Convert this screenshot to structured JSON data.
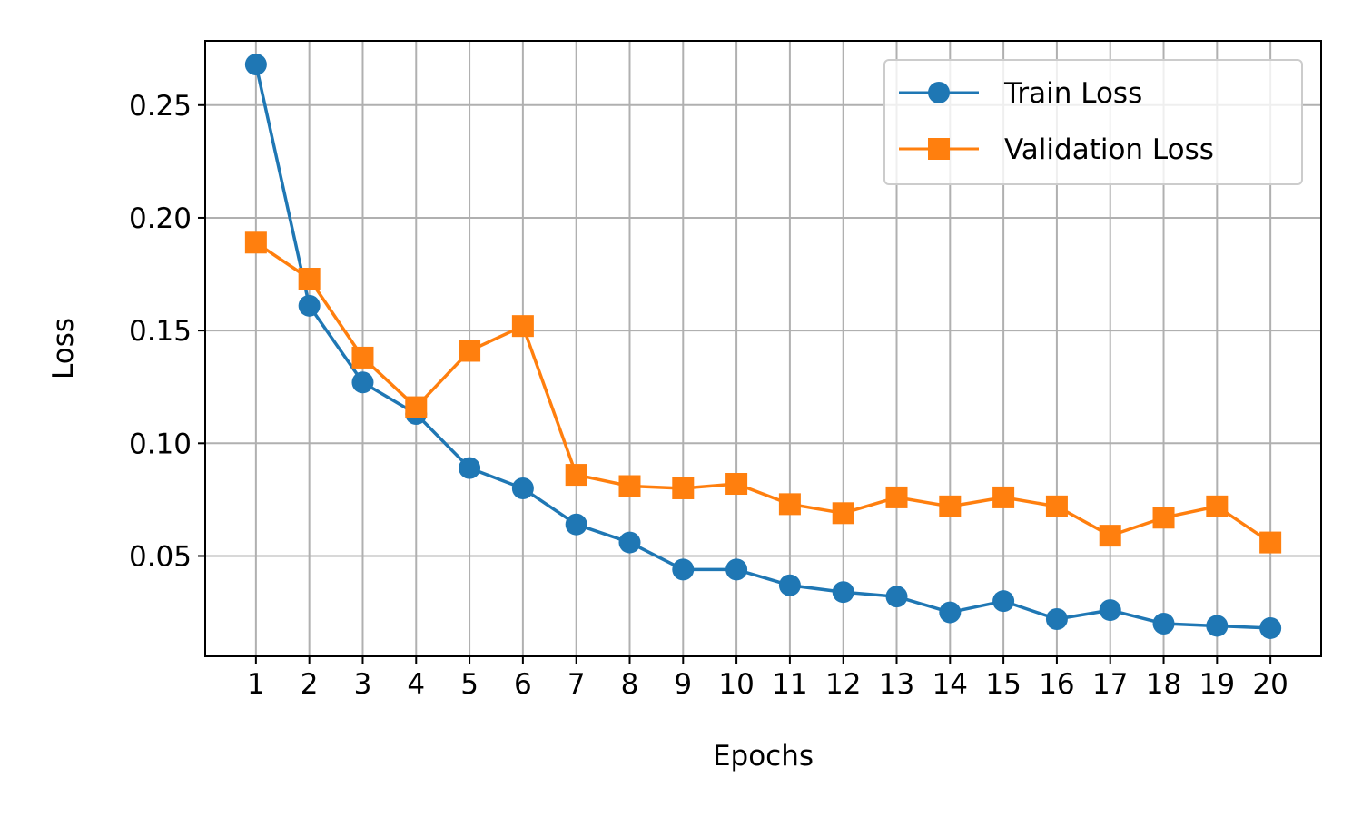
{
  "chart_data": {
    "type": "line",
    "title": "",
    "xlabel": "Epochs",
    "ylabel": "Loss",
    "x": [
      1,
      2,
      3,
      4,
      5,
      6,
      7,
      8,
      9,
      10,
      11,
      12,
      13,
      14,
      15,
      16,
      17,
      18,
      19,
      20
    ],
    "x_tick_labels": [
      "1",
      "2",
      "3",
      "4",
      "5",
      "6",
      "7",
      "8",
      "9",
      "10",
      "11",
      "12",
      "13",
      "14",
      "15",
      "16",
      "17",
      "18",
      "19",
      "20"
    ],
    "xlim": [
      0.05,
      20.95
    ],
    "ylim": [
      0.0055,
      0.2785
    ],
    "y_ticks": [
      0.05,
      0.1,
      0.15,
      0.2,
      0.25
    ],
    "y_tick_labels": [
      "0.05",
      "0.10",
      "0.15",
      "0.20",
      "0.25"
    ],
    "grid": true,
    "legend_position": "upper right",
    "series": [
      {
        "name": "Train Loss",
        "color": "#1f77b4",
        "marker": "circle",
        "values": [
          0.268,
          0.161,
          0.127,
          0.113,
          0.089,
          0.08,
          0.064,
          0.056,
          0.044,
          0.044,
          0.037,
          0.034,
          0.032,
          0.025,
          0.03,
          0.022,
          0.026,
          0.02,
          0.019,
          0.018
        ]
      },
      {
        "name": "Validation Loss",
        "color": "#ff7f0e",
        "marker": "square",
        "values": [
          0.189,
          0.173,
          0.138,
          0.116,
          0.141,
          0.152,
          0.086,
          0.081,
          0.08,
          0.082,
          0.073,
          0.069,
          0.076,
          0.072,
          0.076,
          0.072,
          0.059,
          0.067,
          0.072,
          0.056
        ]
      }
    ]
  }
}
